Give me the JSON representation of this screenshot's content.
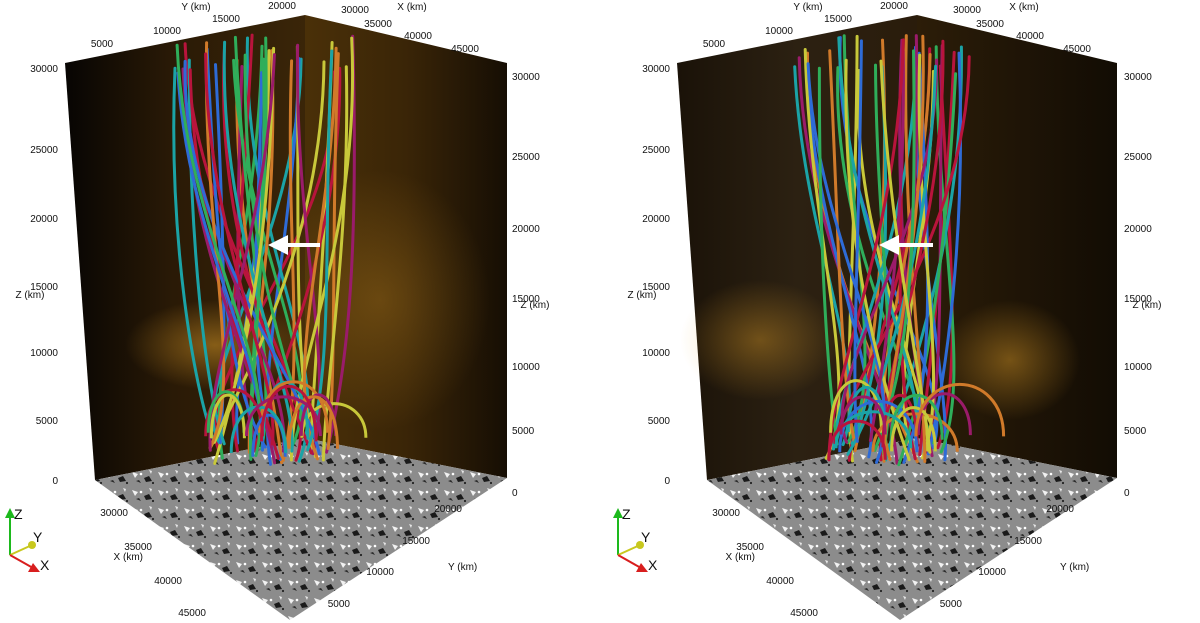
{
  "panels": [
    {
      "id": "left",
      "labels": {
        "y_top": "Y (km)",
        "x_top": "X (km)",
        "z_left": "Z (km)",
        "z_right": "Z (km)",
        "x_bottom": "X (km)",
        "y_bottom": "Y (km)"
      },
      "ticks": {
        "y_top": [
          "5000",
          "10000",
          "15000",
          "20000"
        ],
        "x_top": [
          "30000",
          "35000",
          "40000",
          "45000"
        ],
        "z_left": [
          "0",
          "5000",
          "10000",
          "15000",
          "20000",
          "25000",
          "30000"
        ],
        "z_right": [
          "0",
          "5000",
          "10000",
          "15000",
          "20000",
          "25000",
          "30000"
        ],
        "x_bottom": [
          "30000",
          "35000",
          "40000",
          "45000"
        ],
        "y_bottom": [
          "20000",
          "15000",
          "10000",
          "5000"
        ]
      },
      "triad": {
        "z": "Z",
        "y": "Y",
        "x": "X"
      }
    },
    {
      "id": "right",
      "labels": {
        "y_top": "Y (km)",
        "x_top": "X (km)",
        "z_left": "Z (km)",
        "z_right": "Z (km)",
        "x_bottom": "X (km)",
        "y_bottom": "Y (km)"
      },
      "ticks": {
        "y_top": [
          "5000",
          "10000",
          "15000",
          "20000"
        ],
        "x_top": [
          "30000",
          "35000",
          "40000",
          "45000"
        ],
        "z_left": [
          "0",
          "5000",
          "10000",
          "15000",
          "20000",
          "25000",
          "30000"
        ],
        "z_right": [
          "0",
          "5000",
          "10000",
          "15000",
          "20000",
          "25000",
          "30000"
        ],
        "x_bottom": [
          "30000",
          "35000",
          "40000",
          "45000"
        ],
        "y_bottom": [
          "20000",
          "15000",
          "10000",
          "5000"
        ]
      },
      "triad": {
        "z": "Z",
        "y": "Y",
        "x": "X"
      }
    }
  ],
  "colors": {
    "wall_glow": "#c98a1a",
    "wall_dark": "#120d05",
    "floor": "#8a8a8a",
    "field_lines": [
      "#b8143c",
      "#2e6bd6",
      "#2fae5a",
      "#c8c83a",
      "#1ba3a6",
      "#d07a2a",
      "#9a1b6a"
    ],
    "arrow": "#ffffff",
    "triad_z": "#1db91d",
    "triad_y": "#c8c81e",
    "triad_x": "#d81e1e"
  },
  "icons": {
    "orientation": "xyz-triad-icon",
    "pointer": "white-arrow-icon"
  }
}
